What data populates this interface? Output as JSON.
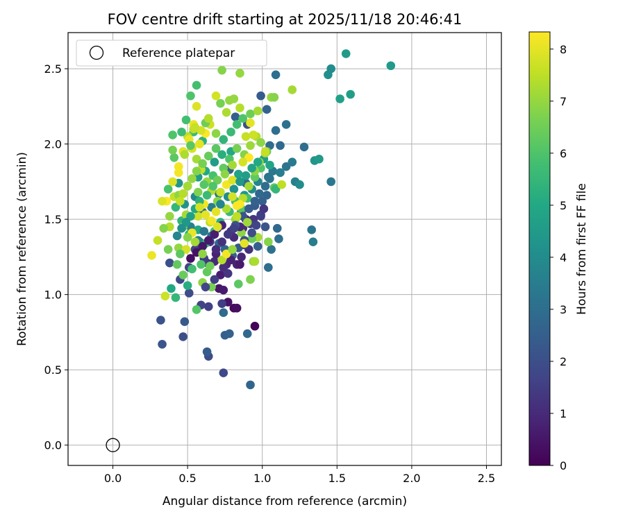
{
  "chart_data": {
    "type": "scatter",
    "title": "FOV centre drift starting at 2025/11/18 20:46:41",
    "xlabel": "Angular distance from reference (arcmin)",
    "ylabel": "Rotation from reference (arcmin)",
    "xlim": [
      -0.3,
      2.6
    ],
    "ylim": [
      -0.135,
      2.74
    ],
    "xticks": [
      0.0,
      0.5,
      1.0,
      1.5,
      2.0,
      2.5
    ],
    "yticks": [
      0.0,
      0.5,
      1.0,
      1.5,
      2.0,
      2.5
    ],
    "xtick_labels": [
      "0.0",
      "0.5",
      "1.0",
      "1.5",
      "2.0",
      "2.5"
    ],
    "ytick_labels": [
      "0.0",
      "0.5",
      "1.0",
      "1.5",
      "2.0",
      "2.5"
    ],
    "grid": true,
    "legend": {
      "position": "top-left",
      "entries": [
        "Reference platepar"
      ]
    },
    "reference_point": {
      "x": 0.0,
      "y": 0.0,
      "label": "Reference platepar"
    },
    "colorbar": {
      "label": "Hours from first FF file",
      "range": [
        0,
        8.33
      ],
      "ticks": [
        0,
        1,
        2,
        3,
        4,
        5,
        6,
        7,
        8
      ],
      "tick_labels": [
        "0",
        "1",
        "2",
        "3",
        "4",
        "5",
        "6",
        "7",
        "8"
      ],
      "colormap": "viridis"
    },
    "points": [
      [
        0.95,
        0.79,
        0.1
      ],
      [
        0.81,
        0.91,
        0.2
      ],
      [
        0.83,
        0.91,
        0.3
      ],
      [
        0.77,
        0.95,
        0.4
      ],
      [
        0.71,
        1.04,
        0.5
      ],
      [
        0.74,
        1.03,
        0.6
      ],
      [
        0.72,
        1.13,
        0.7
      ],
      [
        0.83,
        1.2,
        0.8
      ],
      [
        0.86,
        1.25,
        0.9
      ],
      [
        0.68,
        1.22,
        1.0
      ],
      [
        0.63,
        1.21,
        1.1
      ],
      [
        0.91,
        1.3,
        1.2
      ],
      [
        0.78,
        1.28,
        1.3
      ],
      [
        0.88,
        1.33,
        1.4
      ],
      [
        0.73,
        0.94,
        1.5
      ],
      [
        0.64,
        0.92,
        1.6
      ],
      [
        0.59,
        0.93,
        1.7
      ],
      [
        0.74,
        0.48,
        1.8
      ],
      [
        0.64,
        0.59,
        1.9
      ],
      [
        0.47,
        0.72,
        2.0
      ],
      [
        0.76,
        1.2,
        0.9
      ],
      [
        0.69,
        1.27,
        0.8
      ],
      [
        0.81,
        1.38,
        1.0
      ],
      [
        0.87,
        1.44,
        1.1
      ],
      [
        0.79,
        1.42,
        1.2
      ],
      [
        0.94,
        1.5,
        1.3
      ],
      [
        0.86,
        1.55,
        1.4
      ],
      [
        0.92,
        1.47,
        1.5
      ],
      [
        0.99,
        1.53,
        1.6
      ],
      [
        0.65,
        1.35,
        1.2
      ],
      [
        0.7,
        1.44,
        1.0
      ],
      [
        0.58,
        1.35,
        1.4
      ],
      [
        0.61,
        1.24,
        1.5
      ],
      [
        0.55,
        1.3,
        1.6
      ],
      [
        0.51,
        1.18,
        1.7
      ],
      [
        0.45,
        1.1,
        1.8
      ],
      [
        0.51,
        1.01,
        1.9
      ],
      [
        0.38,
        1.21,
        2.0
      ],
      [
        0.32,
        0.83,
        2.1
      ],
      [
        0.33,
        0.67,
        2.2
      ],
      [
        0.48,
        0.82,
        2.3
      ],
      [
        0.63,
        0.62,
        2.4
      ],
      [
        0.75,
        0.73,
        2.5
      ],
      [
        0.78,
        0.74,
        2.6
      ],
      [
        0.92,
        0.4,
        2.7
      ],
      [
        0.9,
        0.74,
        2.8
      ],
      [
        0.74,
        0.88,
        2.9
      ],
      [
        1.04,
        1.18,
        3.0
      ],
      [
        1.06,
        1.3,
        3.1
      ],
      [
        0.97,
        1.32,
        2.5
      ],
      [
        1.1,
        1.44,
        2.8
      ],
      [
        1.11,
        1.37,
        3.0
      ],
      [
        1.02,
        1.45,
        2.2
      ],
      [
        1.0,
        1.62,
        2.6
      ],
      [
        1.03,
        1.66,
        2.7
      ],
      [
        0.95,
        1.59,
        2.4
      ],
      [
        0.89,
        1.74,
        2.9
      ],
      [
        1.04,
        1.78,
        3.1
      ],
      [
        1.07,
        1.82,
        3.3
      ],
      [
        1.12,
        1.81,
        3.5
      ],
      [
        1.16,
        1.85,
        3.2
      ],
      [
        1.2,
        1.88,
        3.4
      ],
      [
        1.22,
        1.75,
        3.6
      ],
      [
        1.25,
        1.73,
        4.0
      ],
      [
        1.33,
        1.43,
        3.2
      ],
      [
        1.34,
        1.35,
        3.5
      ],
      [
        1.46,
        1.75,
        3.3
      ],
      [
        1.35,
        1.89,
        4.3
      ],
      [
        1.38,
        1.9,
        4.5
      ],
      [
        1.28,
        1.98,
        3.0
      ],
      [
        1.12,
        1.99,
        2.8
      ],
      [
        1.05,
        1.99,
        2.9
      ],
      [
        1.09,
        2.09,
        3.0
      ],
      [
        1.16,
        2.13,
        3.1
      ],
      [
        1.03,
        2.23,
        2.7
      ],
      [
        1.09,
        2.46,
        3.0
      ],
      [
        1.44,
        2.46,
        4.1
      ],
      [
        1.46,
        2.5,
        4.0
      ],
      [
        1.56,
        2.6,
        4.5
      ],
      [
        1.52,
        2.3,
        4.7
      ],
      [
        1.59,
        2.33,
        4.6
      ],
      [
        1.86,
        2.52,
        4.5
      ],
      [
        0.9,
        2.13,
        2.0
      ],
      [
        0.82,
        2.18,
        2.5
      ],
      [
        0.78,
        1.83,
        2.5
      ],
      [
        0.71,
        1.67,
        3.2
      ],
      [
        0.66,
        1.58,
        3.5
      ],
      [
        0.6,
        1.55,
        3.0
      ],
      [
        0.55,
        1.65,
        3.8
      ],
      [
        0.52,
        1.45,
        3.6
      ],
      [
        0.48,
        1.6,
        4.2
      ],
      [
        0.44,
        1.74,
        4.4
      ],
      [
        0.5,
        1.72,
        4.8
      ],
      [
        0.57,
        1.78,
        4.5
      ],
      [
        0.62,
        1.82,
        5.0
      ],
      [
        0.68,
        1.88,
        4.6
      ],
      [
        0.73,
        1.93,
        5.2
      ],
      [
        0.79,
        1.95,
        5.0
      ],
      [
        0.84,
        1.8,
        4.8
      ],
      [
        0.88,
        1.66,
        4.4
      ],
      [
        0.93,
        1.7,
        4.0
      ],
      [
        0.97,
        1.75,
        3.8
      ],
      [
        1.01,
        1.9,
        4.6
      ],
      [
        1.05,
        1.86,
        4.9
      ],
      [
        0.6,
        2.02,
        5.3
      ],
      [
        0.54,
        2.08,
        5.6
      ],
      [
        0.49,
        2.16,
        5.8
      ],
      [
        0.4,
        2.06,
        6.0
      ],
      [
        0.41,
        1.91,
        6.2
      ],
      [
        0.37,
        1.7,
        5.9
      ],
      [
        0.42,
        1.58,
        5.5
      ],
      [
        0.46,
        1.49,
        5.4
      ],
      [
        0.51,
        1.4,
        5.2
      ],
      [
        0.57,
        1.43,
        5.0
      ],
      [
        0.62,
        1.34,
        5.4
      ],
      [
        0.68,
        1.42,
        5.7
      ],
      [
        0.72,
        1.48,
        5.3
      ],
      [
        0.78,
        1.55,
        5.6
      ],
      [
        0.82,
        1.62,
        5.9
      ],
      [
        0.86,
        1.57,
        6.1
      ],
      [
        0.9,
        1.64,
        5.8
      ],
      [
        0.95,
        1.78,
        6.3
      ],
      [
        0.99,
        1.84,
        6.0
      ],
      [
        1.03,
        1.95,
        6.4
      ],
      [
        1.08,
        1.71,
        6.2
      ],
      [
        1.09,
        1.7,
        5.5
      ],
      [
        0.39,
        1.04,
        5.0
      ],
      [
        0.42,
        0.98,
        5.5
      ],
      [
        0.5,
        1.06,
        5.2
      ],
      [
        0.53,
        1.17,
        5.8
      ],
      [
        0.56,
        0.9,
        6.1
      ],
      [
        0.47,
        1.13,
        6.4
      ],
      [
        0.59,
        1.2,
        6.0
      ],
      [
        0.63,
        1.15,
        6.3
      ],
      [
        0.66,
        1.05,
        6.6
      ],
      [
        0.6,
        1.08,
        6.9
      ],
      [
        0.84,
        1.07,
        6.2
      ],
      [
        0.92,
        1.1,
        6.7
      ],
      [
        0.94,
        1.22,
        7.0
      ],
      [
        0.97,
        1.38,
        7.2
      ],
      [
        1.04,
        1.35,
        6.8
      ],
      [
        0.93,
        1.37,
        6.4
      ],
      [
        0.86,
        1.41,
        6.9
      ],
      [
        0.82,
        1.5,
        7.1
      ],
      [
        0.76,
        1.57,
        7.3
      ],
      [
        0.7,
        1.62,
        6.8
      ],
      [
        0.66,
        1.69,
        7.4
      ],
      [
        0.63,
        1.75,
        7.0
      ],
      [
        0.59,
        1.83,
        7.6
      ],
      [
        0.56,
        1.9,
        7.2
      ],
      [
        0.53,
        1.97,
        7.8
      ],
      [
        0.5,
        2.05,
        7.5
      ],
      [
        0.47,
        1.95,
        8.0
      ],
      [
        0.44,
        1.85,
        8.2
      ],
      [
        0.4,
        1.75,
        7.9
      ],
      [
        0.36,
        1.62,
        8.3
      ],
      [
        0.3,
        1.36,
        7.6
      ],
      [
        0.26,
        1.26,
        8.1
      ],
      [
        0.35,
        0.99,
        7.7
      ],
      [
        0.38,
        1.45,
        7.4
      ],
      [
        0.44,
        1.31,
        7.0
      ],
      [
        0.49,
        1.3,
        7.8
      ],
      [
        0.53,
        1.41,
        8.1
      ],
      [
        0.57,
        1.52,
        7.7
      ],
      [
        0.61,
        1.6,
        8.2
      ],
      [
        0.65,
        1.48,
        7.5
      ],
      [
        0.69,
        1.55,
        8.0
      ],
      [
        0.72,
        1.68,
        7.6
      ],
      [
        0.76,
        1.73,
        8.2
      ],
      [
        0.8,
        1.76,
        7.9
      ],
      [
        0.83,
        1.59,
        8.3
      ],
      [
        0.87,
        1.64,
        7.4
      ],
      [
        0.91,
        1.72,
        7.2
      ],
      [
        0.95,
        1.82,
        6.9
      ],
      [
        0.98,
        1.88,
        7.1
      ],
      [
        1.02,
        1.94,
        7.3
      ],
      [
        1.06,
        2.31,
        7.0
      ],
      [
        1.08,
        2.31,
        6.8
      ],
      [
        1.2,
        2.36,
        7.2
      ],
      [
        1.13,
        1.73,
        7.5
      ],
      [
        0.89,
        2.05,
        7.6
      ],
      [
        0.92,
        2.14,
        8.0
      ],
      [
        0.85,
        2.24,
        7.4
      ],
      [
        0.78,
        2.29,
        7.0
      ],
      [
        0.72,
        2.27,
        6.6
      ],
      [
        0.69,
        2.32,
        7.8
      ],
      [
        0.65,
        2.13,
        7.7
      ],
      [
        0.62,
        2.07,
        8.3
      ],
      [
        0.58,
        2.0,
        8.0
      ],
      [
        0.54,
        2.1,
        7.5
      ],
      [
        0.51,
        2.03,
        8.1
      ],
      [
        0.48,
        1.93,
        7.3
      ],
      [
        0.44,
        1.81,
        8.2
      ],
      [
        0.41,
        1.65,
        7.6
      ],
      [
        0.38,
        1.52,
        7.0
      ],
      [
        0.33,
        1.62,
        7.9
      ],
      [
        0.34,
        1.44,
        6.8
      ],
      [
        0.37,
        1.3,
        6.6
      ],
      [
        0.43,
        1.2,
        6.3
      ],
      [
        0.47,
        1.45,
        6.5
      ],
      [
        0.56,
        2.25,
        7.9
      ],
      [
        0.54,
        2.13,
        8.1
      ],
      [
        0.56,
        2.39,
        5.8
      ],
      [
        0.52,
        2.32,
        6.0
      ],
      [
        0.62,
        2.14,
        6.5
      ],
      [
        0.73,
        2.49,
        6.8
      ],
      [
        0.85,
        2.47,
        7.0
      ],
      [
        0.92,
        2.2,
        6.5
      ],
      [
        0.97,
        2.22,
        7.2
      ],
      [
        0.81,
        2.3,
        7.0
      ],
      [
        0.76,
        2.21,
        7.3
      ],
      [
        0.69,
        2.07,
        6.9
      ],
      [
        0.64,
        2.17,
        7.4
      ],
      [
        0.59,
        2.09,
        7.8
      ],
      [
        0.55,
        2.11,
        7.6
      ],
      [
        0.52,
        1.99,
        6.2
      ],
      [
        0.46,
        2.08,
        5.7
      ],
      [
        0.4,
        1.96,
        6.6
      ],
      [
        0.44,
        1.66,
        6.9
      ],
      [
        0.49,
        1.53,
        7.2
      ],
      [
        0.57,
        1.68,
        6.7
      ],
      [
        0.61,
        1.73,
        6.1
      ],
      [
        0.67,
        1.79,
        5.9
      ],
      [
        0.74,
        1.84,
        6.3
      ],
      [
        0.78,
        1.9,
        6.0
      ],
      [
        0.83,
        1.97,
        6.6
      ],
      [
        0.88,
        1.93,
        6.8
      ],
      [
        0.92,
        1.99,
        7.1
      ],
      [
        0.96,
        2.05,
        7.4
      ],
      [
        0.99,
        2.01,
        6.9
      ],
      [
        1.02,
        1.95,
        7.6
      ],
      [
        0.99,
        2.32,
        2.4
      ],
      [
        0.94,
        2.06,
        7.7
      ],
      [
        0.91,
        1.91,
        8.3
      ],
      [
        0.87,
        1.88,
        7.8
      ],
      [
        0.8,
        1.86,
        7.2
      ],
      [
        0.75,
        1.8,
        6.9
      ],
      [
        0.7,
        1.76,
        6.5
      ],
      [
        0.67,
        1.72,
        6.0
      ],
      [
        0.63,
        1.66,
        5.6
      ],
      [
        0.58,
        1.62,
        5.3
      ],
      [
        0.55,
        1.57,
        5.0
      ],
      [
        0.52,
        1.52,
        4.7
      ],
      [
        0.49,
        1.48,
        4.4
      ],
      [
        0.46,
        1.44,
        4.1
      ],
      [
        0.43,
        1.39,
        3.8
      ],
      [
        0.57,
        1.36,
        3.5
      ],
      [
        0.61,
        1.42,
        3.3
      ],
      [
        0.66,
        1.39,
        3.1
      ],
      [
        0.71,
        1.34,
        2.9
      ],
      [
        0.75,
        1.3,
        2.7
      ],
      [
        0.8,
        1.26,
        2.5
      ],
      [
        0.84,
        1.31,
        2.3
      ],
      [
        0.88,
        1.36,
        2.1
      ],
      [
        0.93,
        1.41,
        1.9
      ],
      [
        0.96,
        1.46,
        1.7
      ],
      [
        0.99,
        1.52,
        1.5
      ],
      [
        1.01,
        1.57,
        1.3
      ],
      [
        0.85,
        1.45,
        1.0
      ],
      [
        0.89,
        1.5,
        0.9
      ],
      [
        0.73,
        1.46,
        0.8
      ],
      [
        0.68,
        1.4,
        0.7
      ],
      [
        0.64,
        1.36,
        0.6
      ],
      [
        0.6,
        1.32,
        0.5
      ],
      [
        0.56,
        1.28,
        0.4
      ],
      [
        0.52,
        1.24,
        0.3
      ],
      [
        0.74,
        1.18,
        1.1
      ],
      [
        0.77,
        1.14,
        1.3
      ],
      [
        0.68,
        1.1,
        1.5
      ],
      [
        0.62,
        1.05,
        1.7
      ],
      [
        0.82,
        1.46,
        2.1
      ],
      [
        0.87,
        1.52,
        2.2
      ],
      [
        0.91,
        1.57,
        2.4
      ],
      [
        0.95,
        1.62,
        2.6
      ],
      [
        0.98,
        1.67,
        2.8
      ],
      [
        1.02,
        1.72,
        3.0
      ],
      [
        1.05,
        1.77,
        3.2
      ],
      [
        0.72,
        1.6,
        3.8
      ],
      [
        0.77,
        1.65,
        4.0
      ],
      [
        0.81,
        1.7,
        4.2
      ],
      [
        0.85,
        1.75,
        4.4
      ],
      [
        0.89,
        1.79,
        4.6
      ],
      [
        0.93,
        1.84,
        4.8
      ],
      [
        0.97,
        1.88,
        5.0
      ],
      [
        0.74,
        2.03,
        5.4
      ],
      [
        0.79,
        2.08,
        5.6
      ],
      [
        0.83,
        2.13,
        5.8
      ],
      [
        0.87,
        2.17,
        6.0
      ],
      [
        0.69,
        1.97,
        6.2
      ],
      [
        0.64,
        1.92,
        6.4
      ],
      [
        0.6,
        1.87,
        6.6
      ],
      [
        0.56,
        1.82,
        6.8
      ],
      [
        0.53,
        1.77,
        7.0
      ],
      [
        0.5,
        1.72,
        7.2
      ],
      [
        0.47,
        1.67,
        7.4
      ],
      [
        0.45,
        1.62,
        7.6
      ],
      [
        0.58,
        1.58,
        7.8
      ],
      [
        0.62,
        1.53,
        8.0
      ],
      [
        0.66,
        1.49,
        8.2
      ],
      [
        0.7,
        1.45,
        7.9
      ],
      [
        0.85,
        1.2,
        0.6
      ],
      [
        0.79,
        1.23,
        0.8
      ],
      [
        0.69,
        1.3,
        1.0
      ],
      [
        0.73,
        1.35,
        1.2
      ],
      [
        0.77,
        1.4,
        1.4
      ],
      [
        0.81,
        1.44,
        1.6
      ],
      [
        0.73,
        1.23,
        7.4
      ],
      [
        0.76,
        1.27,
        8.2
      ],
      [
        0.88,
        1.34,
        8.0
      ],
      [
        0.8,
        1.3,
        7.0
      ],
      [
        0.95,
        1.22,
        7.3
      ],
      [
        0.85,
        1.6,
        8.3
      ],
      [
        0.8,
        1.65,
        7.8
      ],
      [
        0.83,
        1.52,
        7.5
      ],
      [
        0.9,
        1.48,
        7.1
      ],
      [
        0.6,
        1.27,
        6.9
      ],
      [
        0.65,
        1.19,
        6.5
      ],
      [
        0.55,
        1.35,
        7.2
      ],
      [
        0.5,
        1.38,
        6.8
      ],
      [
        0.45,
        1.27,
        6.2
      ]
    ]
  }
}
